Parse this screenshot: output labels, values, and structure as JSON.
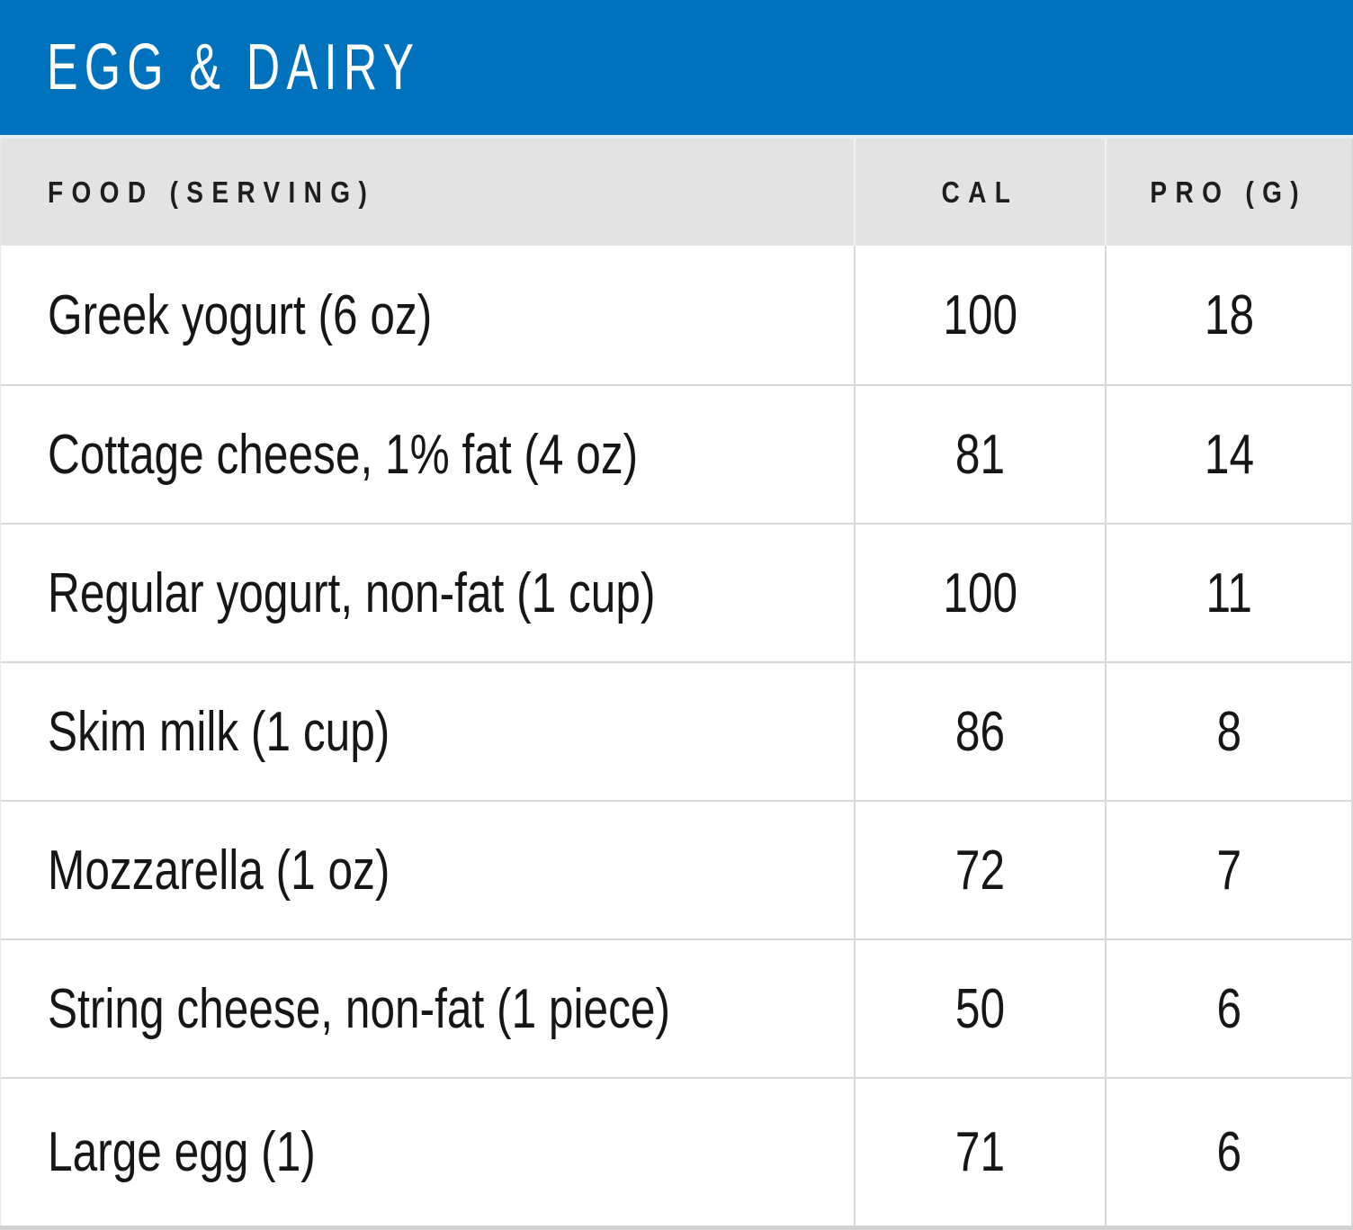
{
  "header": {
    "title": "EGG & DAIRY"
  },
  "table": {
    "columns": [
      {
        "label": "FOOD (SERVING)"
      },
      {
        "label": "CAL"
      },
      {
        "label": "PRO (G)"
      }
    ],
    "rows": [
      {
        "food": "Greek yogurt (6 oz)",
        "cal": "100",
        "pro": "18"
      },
      {
        "food": "Cottage cheese, 1% fat (4 oz)",
        "cal": "81",
        "pro": "14"
      },
      {
        "food": "Regular yogurt, non-fat (1 cup)",
        "cal": "100",
        "pro": "11"
      },
      {
        "food": "Skim milk (1 cup)",
        "cal": "86",
        "pro": "8"
      },
      {
        "food": "Mozzarella (1 oz)",
        "cal": "72",
        "pro": "7"
      },
      {
        "food": "String cheese, non-fat (1 piece)",
        "cal": "50",
        "pro": "6"
      },
      {
        "food": "Large egg (1)",
        "cal": "71",
        "pro": "6"
      }
    ]
  },
  "chart_data": {
    "type": "table",
    "title": "EGG & DAIRY",
    "categories": [
      "Greek yogurt (6 oz)",
      "Cottage cheese, 1% fat (4 oz)",
      "Regular yogurt, non-fat (1 cup)",
      "Skim milk (1 cup)",
      "Mozzarella (1 oz)",
      "String cheese, non-fat (1 piece)",
      "Large egg (1)"
    ],
    "series": [
      {
        "name": "CAL",
        "values": [
          100,
          81,
          100,
          86,
          72,
          50,
          71
        ]
      },
      {
        "name": "PRO (G)",
        "values": [
          18,
          14,
          11,
          8,
          7,
          6,
          6
        ]
      }
    ]
  },
  "colors": {
    "accent_blue": "#0071BC",
    "header_gray": "#E3E3E3",
    "divider": "#D8D8D8",
    "title_text": "#FFFFFF",
    "body_text": "#161616"
  }
}
